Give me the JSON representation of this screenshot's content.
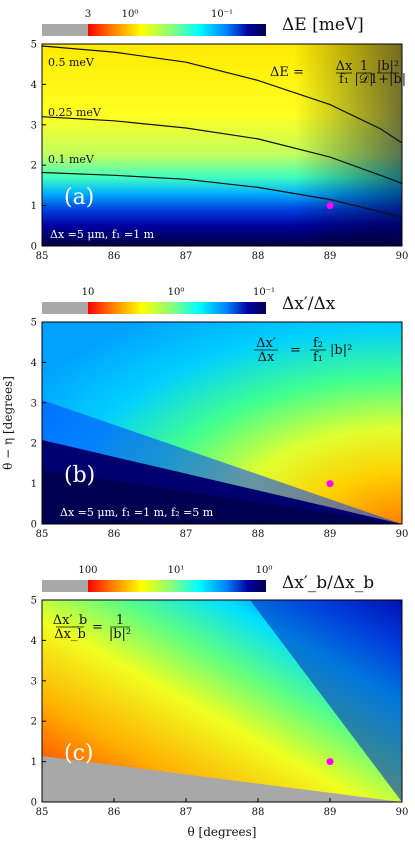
{
  "chart_data": [
    {
      "type": "heatmap",
      "panel_label": "(a)",
      "colorbar_title": "ΔE [meV]",
      "colorbar_ticks": [
        "3",
        "10⁰",
        "10⁻¹"
      ],
      "colormap": {
        "stops": [
          "#ff0000",
          "#ff8000",
          "#ffff00",
          "#80ff80",
          "#00ffff",
          "#0080ff",
          "#0000a0",
          "#000050"
        ],
        "saturation_color": "#a8a8a8"
      },
      "xlim": [
        85,
        90
      ],
      "ylim": [
        0,
        5
      ],
      "x_ticks": [
        "85",
        "86",
        "87",
        "88",
        "89",
        "90"
      ],
      "y_ticks": [
        "0",
        "1",
        "2",
        "3",
        "4",
        "5"
      ],
      "contours": [
        {
          "label": "0.5 meV",
          "points": [
            [
              85,
              4.95
            ],
            [
              86,
              4.8
            ],
            [
              87,
              4.55
            ],
            [
              88,
              4.1
            ],
            [
              89,
              3.5
            ],
            [
              89.7,
              2.9
            ],
            [
              90,
              2.55
            ]
          ]
        },
        {
          "label": "0.25 meV",
          "points": [
            [
              85,
              3.2
            ],
            [
              86,
              3.1
            ],
            [
              87,
              2.92
            ],
            [
              88,
              2.65
            ],
            [
              89,
              2.2
            ],
            [
              89.7,
              1.75
            ],
            [
              90,
              1.55
            ]
          ]
        },
        {
          "label": "0.1 meV",
          "points": [
            [
              85,
              1.82
            ],
            [
              86,
              1.75
            ],
            [
              87,
              1.65
            ],
            [
              88,
              1.45
            ],
            [
              89,
              1.15
            ],
            [
              89.7,
              0.85
            ],
            [
              90,
              0.72
            ]
          ]
        }
      ],
      "marker": {
        "x": 89,
        "y": 1,
        "color": "#ff00ff"
      },
      "formula": {
        "lhs": "ΔE =",
        "frac1_num": "Δx",
        "frac1_den": "f₁",
        "frac2_num": "1",
        "frac2_den": "|𝒟|",
        "frac3_num": "|b|²",
        "frac3_den": "1+|b|"
      },
      "annotation": "Δx =5 μm, f₁ =1 m"
    },
    {
      "type": "heatmap",
      "panel_label": "(b)",
      "colorbar_title": "Δx′/Δx",
      "colorbar_ticks": [
        "10",
        "10⁰",
        "10⁻¹"
      ],
      "colormap": {
        "stops": [
          "#ff0000",
          "#ff8000",
          "#ffff00",
          "#80ff80",
          "#00ffff",
          "#0080ff",
          "#0000a0",
          "#000050"
        ],
        "saturation_color": "#a8a8a8"
      },
      "xlim": [
        85,
        90
      ],
      "ylim": [
        0,
        5
      ],
      "x_ticks": [
        "85",
        "86",
        "87",
        "88",
        "89",
        "90"
      ],
      "y_ticks": [
        "0",
        "1",
        "2",
        "3",
        "4",
        "5"
      ],
      "ylabel": "θ − η [degrees]",
      "marker": {
        "x": 89,
        "y": 1,
        "color": "#ff00ff"
      },
      "formula": {
        "lhs_num": "Δx′",
        "lhs_den": "Δx",
        "eq": "=",
        "rhs_num": "f₂",
        "rhs_den": "f₁",
        "rhs_tail": "|b|²"
      },
      "annotation": "Δx =5 μm, f₁ =1 m, f₂ =5 m"
    },
    {
      "type": "heatmap",
      "panel_label": "(c)",
      "colorbar_title": "Δx′_b/Δx_b",
      "colorbar_ticks": [
        "100",
        "10¹",
        "10⁰"
      ],
      "colormap": {
        "stops": [
          "#ff0000",
          "#ff8000",
          "#ffff00",
          "#80ff80",
          "#00ffff",
          "#0080ff",
          "#0000a0",
          "#000050"
        ],
        "saturation_color": "#a8a8a8"
      },
      "xlim": [
        85,
        90
      ],
      "ylim": [
        0,
        5
      ],
      "x_ticks": [
        "85",
        "86",
        "87",
        "88",
        "89",
        "90"
      ],
      "y_ticks": [
        "0",
        "1",
        "2",
        "3",
        "4",
        "5"
      ],
      "xlabel": "θ [degrees]",
      "marker": {
        "x": 89,
        "y": 1,
        "color": "#ff00ff"
      },
      "formula": {
        "lhs_num": "Δx′_b",
        "lhs_den": "Δx_b",
        "eq": "=",
        "rhs_num": "1",
        "rhs_den": "|b|²"
      }
    }
  ]
}
